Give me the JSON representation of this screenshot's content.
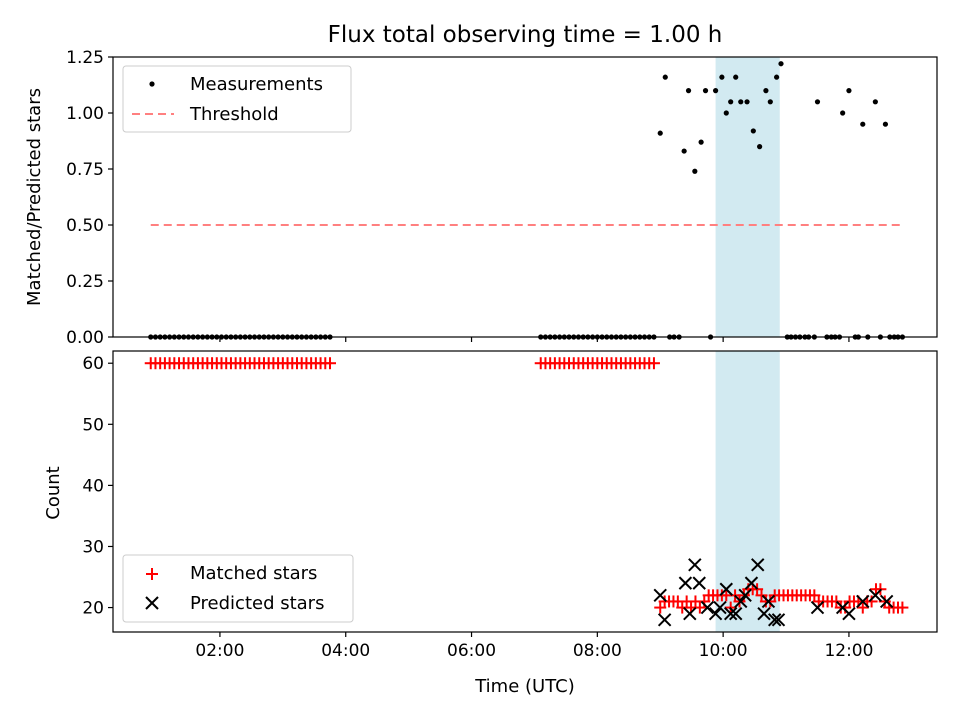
{
  "chart_data": {
    "title": "Flux total observing time = 1.00 h",
    "xlabel": "Time (UTC)",
    "xlim": [
      0.3,
      13.4
    ],
    "xticks": [
      2,
      4,
      6,
      8,
      10,
      12
    ],
    "xtick_labels": [
      "02:00",
      "04:00",
      "06:00",
      "08:00",
      "10:00",
      "12:00"
    ],
    "highlight": {
      "start": 9.88,
      "end": 10.9,
      "color": "#add8e6"
    },
    "panels": [
      {
        "type": "scatter",
        "ylabel": "Matched/Predicted stars",
        "ylim": [
          0,
          1.25
        ],
        "yticks": [
          0,
          0.25,
          0.5,
          0.75,
          1.0,
          1.25
        ],
        "ytick_labels": [
          "0.00",
          "0.25",
          "0.50",
          "0.75",
          "1.00",
          "1.25"
        ],
        "legend": [
          "Measurements",
          "Threshold"
        ],
        "threshold": {
          "value": 0.5,
          "x": [
            0.9,
            12.85
          ],
          "color": "#ff8080"
        },
        "measurements_nonzero": [
          [
            9.0,
            0.91
          ],
          [
            9.08,
            1.16
          ],
          [
            9.38,
            0.83
          ],
          [
            9.45,
            1.1
          ],
          [
            9.55,
            0.74
          ],
          [
            9.65,
            0.87
          ],
          [
            9.72,
            1.1
          ],
          [
            9.88,
            1.1
          ],
          [
            9.98,
            1.16
          ],
          [
            10.05,
            1.0
          ],
          [
            10.12,
            1.05
          ],
          [
            10.2,
            1.16
          ],
          [
            10.28,
            1.05
          ],
          [
            10.38,
            1.05
          ],
          [
            10.48,
            0.92
          ],
          [
            10.58,
            0.85
          ],
          [
            10.68,
            1.1
          ],
          [
            10.75,
            1.05
          ],
          [
            10.85,
            1.16
          ],
          [
            10.92,
            1.22
          ],
          [
            11.5,
            1.05
          ],
          [
            11.9,
            1.0
          ],
          [
            12.0,
            1.1
          ],
          [
            12.22,
            0.95
          ],
          [
            12.42,
            1.05
          ],
          [
            12.58,
            0.95
          ]
        ],
        "measurements_zero": {
          "segments": [
            [
              0.9,
              3.8,
              0.075
            ],
            [
              7.1,
              8.95,
              0.075
            ]
          ],
          "points": [
            9.15,
            9.22,
            9.3,
            9.8,
            11.02,
            11.08,
            11.15,
            11.22,
            11.3,
            11.36,
            11.45,
            11.65,
            11.72,
            11.78,
            11.85,
            12.1,
            12.15,
            12.3,
            12.5,
            12.65,
            12.72,
            12.78,
            12.85
          ]
        }
      },
      {
        "type": "scatter",
        "ylabel": "Count",
        "ylim": [
          16,
          62
        ],
        "yticks": [
          20,
          30,
          40,
          50,
          60
        ],
        "ytick_labels": [
          "20",
          "30",
          "40",
          "50",
          "60"
        ],
        "legend": [
          "Matched stars",
          "Predicted stars"
        ],
        "matched_flat": {
          "value": 60,
          "segments": [
            [
              0.9,
              3.8,
              0.075
            ],
            [
              7.1,
              8.95,
              0.075
            ]
          ]
        },
        "matched_late": [
          [
            9.0,
            20
          ],
          [
            9.07,
            21
          ],
          [
            9.14,
            21
          ],
          [
            9.21,
            21
          ],
          [
            9.28,
            21
          ],
          [
            9.35,
            20
          ],
          [
            9.42,
            21
          ],
          [
            9.49,
            20
          ],
          [
            9.56,
            21
          ],
          [
            9.63,
            20
          ],
          [
            9.7,
            21
          ],
          [
            9.77,
            22
          ],
          [
            9.84,
            22
          ],
          [
            9.91,
            22
          ],
          [
            9.98,
            22
          ],
          [
            10.05,
            22
          ],
          [
            10.12,
            20
          ],
          [
            10.19,
            22
          ],
          [
            10.26,
            21
          ],
          [
            10.33,
            22
          ],
          [
            10.4,
            23
          ],
          [
            10.47,
            23
          ],
          [
            10.54,
            23
          ],
          [
            10.61,
            22
          ],
          [
            10.68,
            21
          ],
          [
            10.75,
            21
          ],
          [
            10.82,
            22
          ],
          [
            10.89,
            22
          ],
          [
            10.96,
            22
          ],
          [
            11.03,
            22
          ],
          [
            11.1,
            22
          ],
          [
            11.17,
            22
          ],
          [
            11.24,
            22
          ],
          [
            11.31,
            22
          ],
          [
            11.38,
            22
          ],
          [
            11.45,
            22
          ],
          [
            11.52,
            21
          ],
          [
            11.59,
            21
          ],
          [
            11.66,
            21
          ],
          [
            11.73,
            21
          ],
          [
            11.8,
            21
          ],
          [
            11.87,
            20
          ],
          [
            11.94,
            20
          ],
          [
            12.01,
            21
          ],
          [
            12.08,
            21
          ],
          [
            12.15,
            21
          ],
          [
            12.22,
            20
          ],
          [
            12.29,
            21
          ],
          [
            12.36,
            21
          ],
          [
            12.43,
            23
          ],
          [
            12.5,
            23
          ],
          [
            12.57,
            21
          ],
          [
            12.64,
            20
          ],
          [
            12.71,
            20
          ],
          [
            12.78,
            20
          ],
          [
            12.85,
            20
          ]
        ],
        "predicted": [
          [
            9.0,
            22
          ],
          [
            9.07,
            18
          ],
          [
            9.4,
            24
          ],
          [
            9.47,
            19
          ],
          [
            9.55,
            27
          ],
          [
            9.62,
            24
          ],
          [
            9.75,
            20
          ],
          [
            9.88,
            19
          ],
          [
            9.95,
            20
          ],
          [
            10.05,
            23
          ],
          [
            10.12,
            19
          ],
          [
            10.2,
            19
          ],
          [
            10.28,
            21
          ],
          [
            10.35,
            22
          ],
          [
            10.45,
            24
          ],
          [
            10.55,
            27
          ],
          [
            10.65,
            19
          ],
          [
            10.72,
            21
          ],
          [
            10.82,
            18
          ],
          [
            10.88,
            18
          ],
          [
            11.5,
            20
          ],
          [
            11.9,
            20
          ],
          [
            12.0,
            19
          ],
          [
            12.22,
            21
          ],
          [
            12.42,
            22
          ],
          [
            12.6,
            21
          ]
        ]
      }
    ]
  }
}
